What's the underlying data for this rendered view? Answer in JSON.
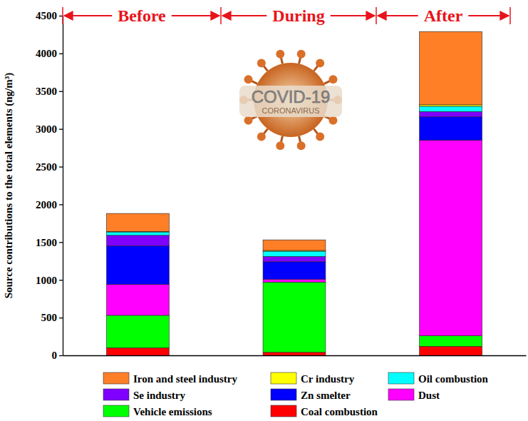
{
  "chart_data": {
    "type": "bar",
    "stacked": true,
    "y_label": "Source contributions to the total elements (ng/m³)",
    "categories": [
      "Before",
      "During",
      "After"
    ],
    "annotations": [
      "COVID-19",
      "CORONAVIRUS"
    ],
    "series": [
      {
        "name": "Coal combustion",
        "color": "#ff0000",
        "values": [
          100,
          40,
          120
        ]
      },
      {
        "name": "Vehicle emissions",
        "color": "#00ff00",
        "values": [
          430,
          930,
          140
        ]
      },
      {
        "name": "Dust",
        "color": "#ff00ff",
        "values": [
          410,
          40,
          2590
        ]
      },
      {
        "name": "Zn smelter",
        "color": "#0000ff",
        "values": [
          510,
          230,
          310
        ]
      },
      {
        "name": "Se industry",
        "color": "#7f00ff",
        "values": [
          140,
          70,
          70
        ]
      },
      {
        "name": "Oil combustion",
        "color": "#00ffff",
        "values": [
          45,
          70,
          70
        ]
      },
      {
        "name": "Cr industry",
        "color": "#ffff00",
        "values": [
          5,
          10,
          20
        ]
      },
      {
        "name": "Iron and steel industry",
        "color": "#ff7f27",
        "values": [
          240,
          140,
          970
        ]
      }
    ],
    "ylim": [
      0,
      4500
    ],
    "yticks": [
      0,
      500,
      1000,
      1500,
      2000,
      2500,
      3000,
      3500,
      4000,
      4500
    ],
    "tick_labels": "y",
    "legend": "bottom"
  }
}
